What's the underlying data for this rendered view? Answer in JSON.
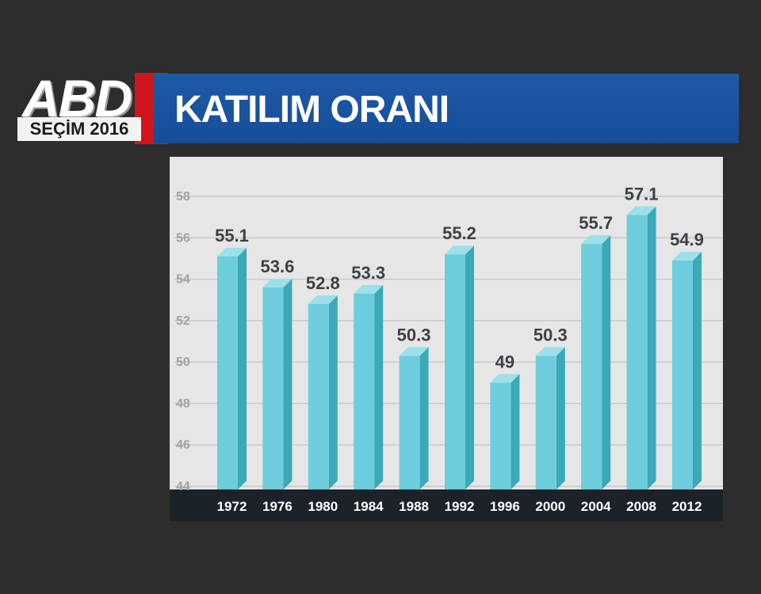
{
  "logo": {
    "main": "ABD",
    "sub": "SEÇİM 2016"
  },
  "title": "KATILIM ORANI",
  "colors": {
    "background": "#2d2d2d",
    "title_bar": "#1a55a0",
    "logo_red": "#d0161d",
    "bar_front": "#6ecddc",
    "bar_side": "#3aa9b8",
    "bar_top": "#9be0ea",
    "label": "#3c4047",
    "axis_strip": "#1c2229"
  },
  "chart_data": {
    "type": "bar",
    "title": "KATILIM ORANI",
    "xlabel": "",
    "ylabel": "",
    "categories": [
      "1972",
      "1976",
      "1980",
      "1984",
      "1988",
      "1992",
      "1996",
      "2000",
      "2004",
      "2008",
      "2012"
    ],
    "values": [
      55.1,
      53.6,
      52.8,
      53.3,
      50.3,
      55.2,
      49,
      50.3,
      55.7,
      57.1,
      54.9
    ],
    "value_labels": [
      "55.1",
      "53.6",
      "52.8",
      "53.3",
      "50.3",
      "55.2",
      "49",
      "50.3",
      "55.7",
      "57.1",
      "54.9"
    ],
    "yticks": [
      "44",
      "46",
      "48",
      "50",
      "52",
      "54",
      "56",
      "58"
    ],
    "ylim": [
      44,
      58
    ],
    "grid": true,
    "legend": "none"
  }
}
